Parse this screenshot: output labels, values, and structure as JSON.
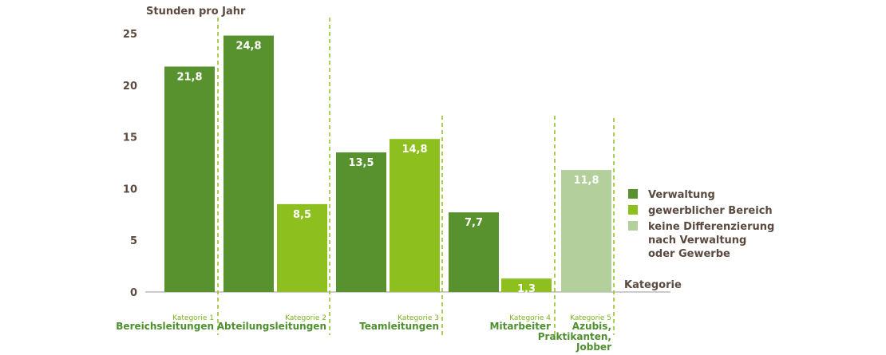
{
  "chart_data": {
    "type": "bar",
    "ylabel": "Stunden pro Jahr",
    "xlabel": "Kategorie",
    "ylim": [
      0,
      25
    ],
    "yticks": [
      "0",
      "5",
      "10",
      "15",
      "20",
      "25"
    ],
    "grid": false,
    "legend_position": "right",
    "categories": [
      {
        "kat": "Kategorie 1",
        "name": "Bereichsleitungen"
      },
      {
        "kat": "Kategorie 2",
        "name": "Abteilungsleitungen"
      },
      {
        "kat": "Kategorie 3",
        "name": "Teamleitungen"
      },
      {
        "kat": "Kategorie 4",
        "name": "Mitarbeiter"
      },
      {
        "kat": "Kategorie 5",
        "name": "Azubis, Praktikanten, Jobber"
      }
    ],
    "series": [
      {
        "name": "Verwaltung",
        "color": "#57922f",
        "values": [
          21.8,
          24.8,
          13.5,
          7.7,
          null
        ],
        "labels": [
          "21,8",
          "24,8",
          "13,5",
          "7,7",
          ""
        ]
      },
      {
        "name": "gewerblicher Bereich",
        "color": "#8dbf1f",
        "values": [
          null,
          8.5,
          14.8,
          1.3,
          null
        ],
        "labels": [
          "",
          "8,5",
          "14,8",
          "1,3",
          ""
        ]
      },
      {
        "name": "keine Differenzierung nach Verwaltung oder Gewerbe",
        "color": "#b3cf9c",
        "values": [
          null,
          null,
          null,
          null,
          11.8
        ],
        "labels": [
          "",
          "",
          "",
          "",
          "11,8"
        ]
      }
    ],
    "legend_lines": [
      [
        "Verwaltung"
      ],
      [
        "gewerblicher Bereich"
      ],
      [
        "keine Differenzierung",
        "nach Verwaltung",
        "oder Gewerbe"
      ]
    ],
    "category_label_lines": [
      [
        "Bereichsleitungen"
      ],
      [
        "Abteilungsleitungen"
      ],
      [
        "Teamleitungen"
      ],
      [
        "Mitarbeiter"
      ],
      [
        "Azubis,",
        "Praktikanten,",
        "Jobber"
      ]
    ]
  }
}
